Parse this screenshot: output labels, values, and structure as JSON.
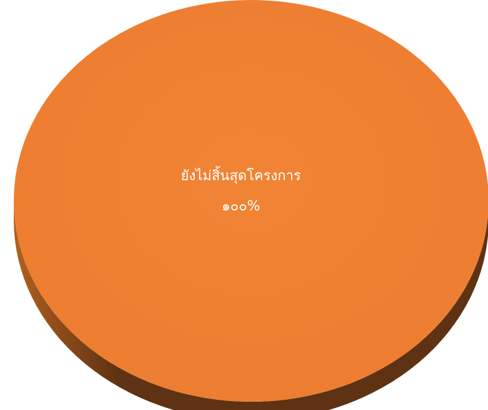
{
  "chart_data": {
    "type": "pie",
    "style": "3d",
    "title": "",
    "labels": [
      "ยังไม่สิ้นสุดโครงการ"
    ],
    "values": [
      100
    ],
    "value_labels": [
      "๑๐๐%"
    ],
    "colors": {
      "top": "#ED7D31",
      "top_highlight": "#F08434",
      "side_light": "#B2601E",
      "side_dark": "#5E3212"
    },
    "legend": "none",
    "grid": false
  }
}
